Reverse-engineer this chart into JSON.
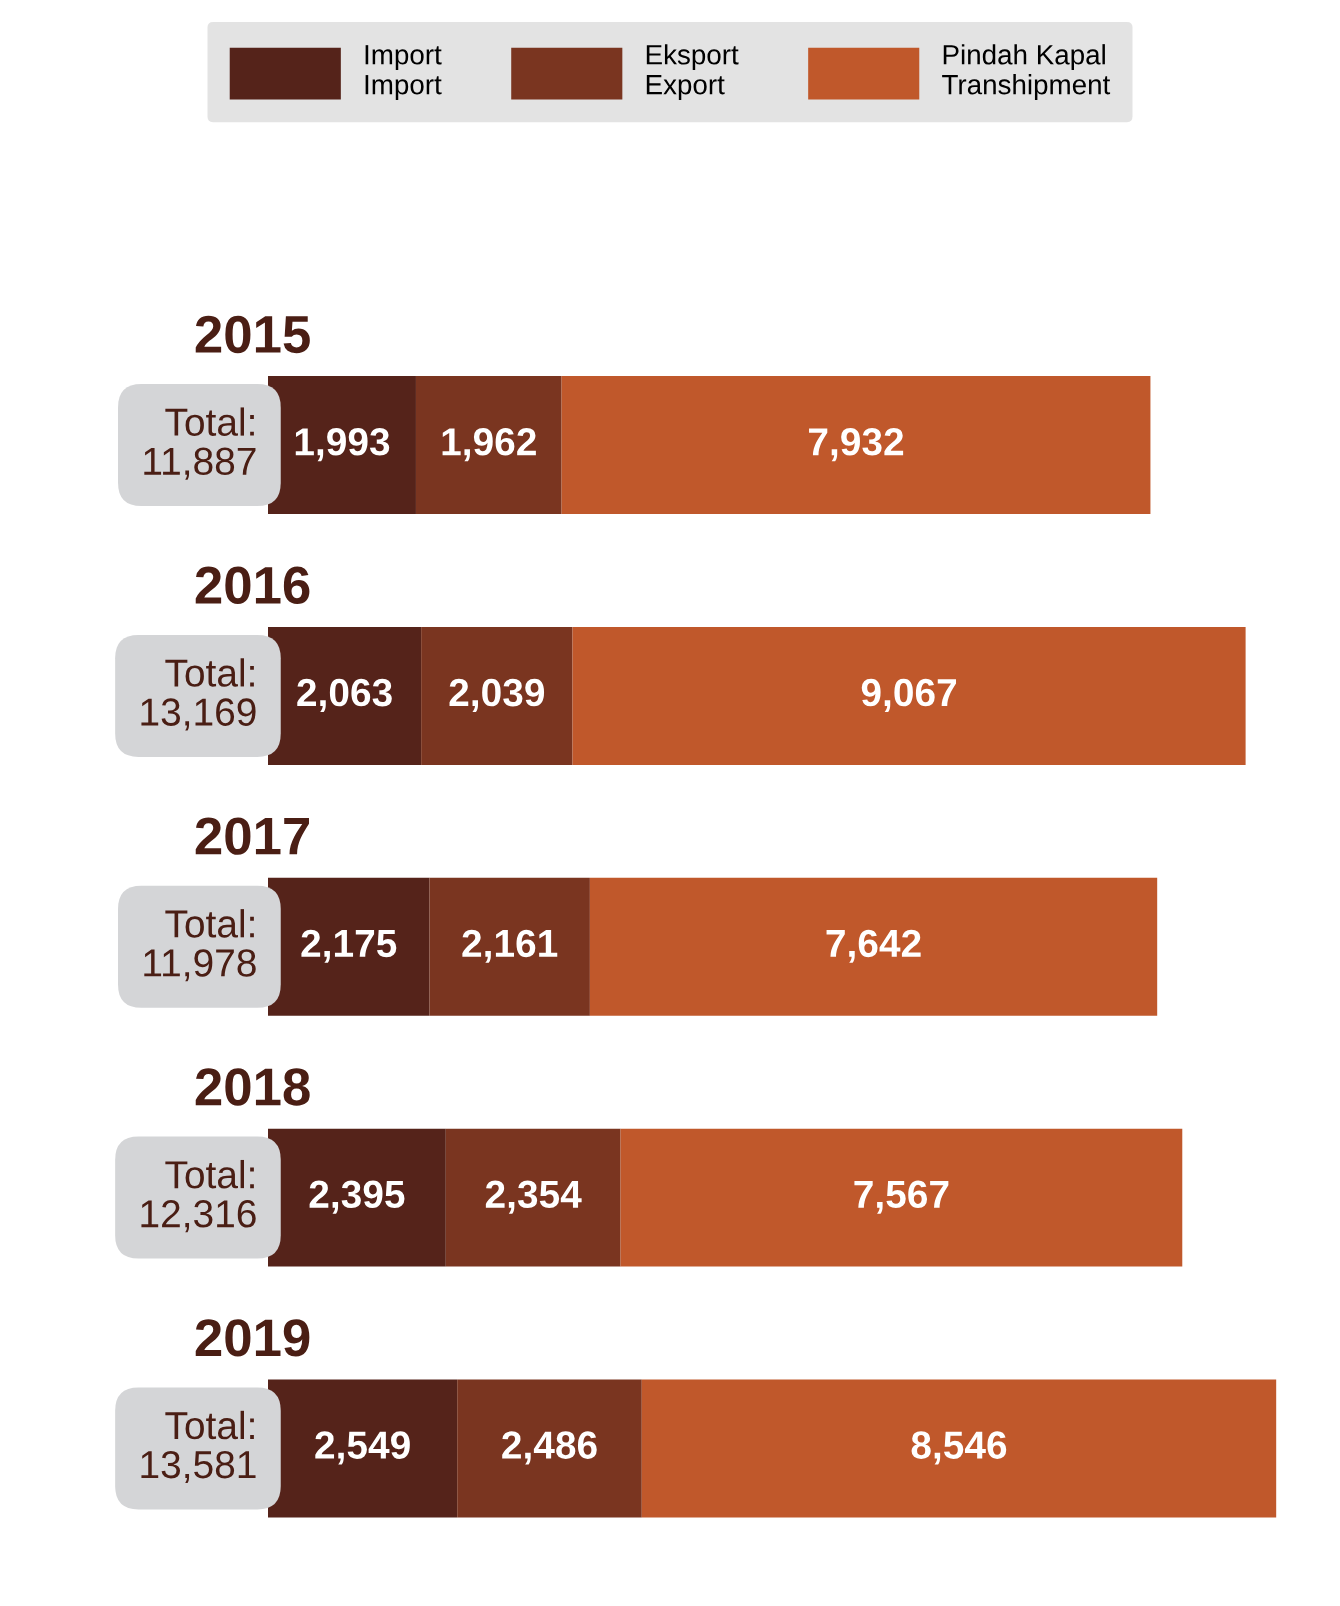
{
  "chart_data": {
    "type": "bar",
    "orientation": "horizontal",
    "stacked": true,
    "categories": [
      "2015",
      "2016",
      "2017",
      "2018",
      "2019"
    ],
    "series": [
      {
        "name": "Import\nImport",
        "color": "#55231a",
        "values": [
          1993,
          2063,
          2175,
          2395,
          2549
        ],
        "value_labels": [
          "1,993",
          "2,063",
          "2,175",
          "2,395",
          "2,549"
        ]
      },
      {
        "name": "Eksport\nExport",
        "color": "#7a3520",
        "values": [
          1962,
          2039,
          2161,
          2354,
          2486
        ],
        "value_labels": [
          "1,962",
          "2,039",
          "2,161",
          "2,354",
          "2,486"
        ]
      },
      {
        "name": "Pindah Kapal\nTranshipment",
        "color": "#c0582b",
        "values": [
          7932,
          9067,
          7642,
          7567,
          8546
        ],
        "value_labels": [
          "7,932",
          "9,067",
          "7,642",
          "7,567",
          "8,546"
        ]
      }
    ],
    "totals": [
      "Total:\n11,887",
      "Total:\n13,169",
      "Total:\n11,978",
      "Total:\n12,316",
      "Total:\n13,581"
    ],
    "legend": "top"
  }
}
